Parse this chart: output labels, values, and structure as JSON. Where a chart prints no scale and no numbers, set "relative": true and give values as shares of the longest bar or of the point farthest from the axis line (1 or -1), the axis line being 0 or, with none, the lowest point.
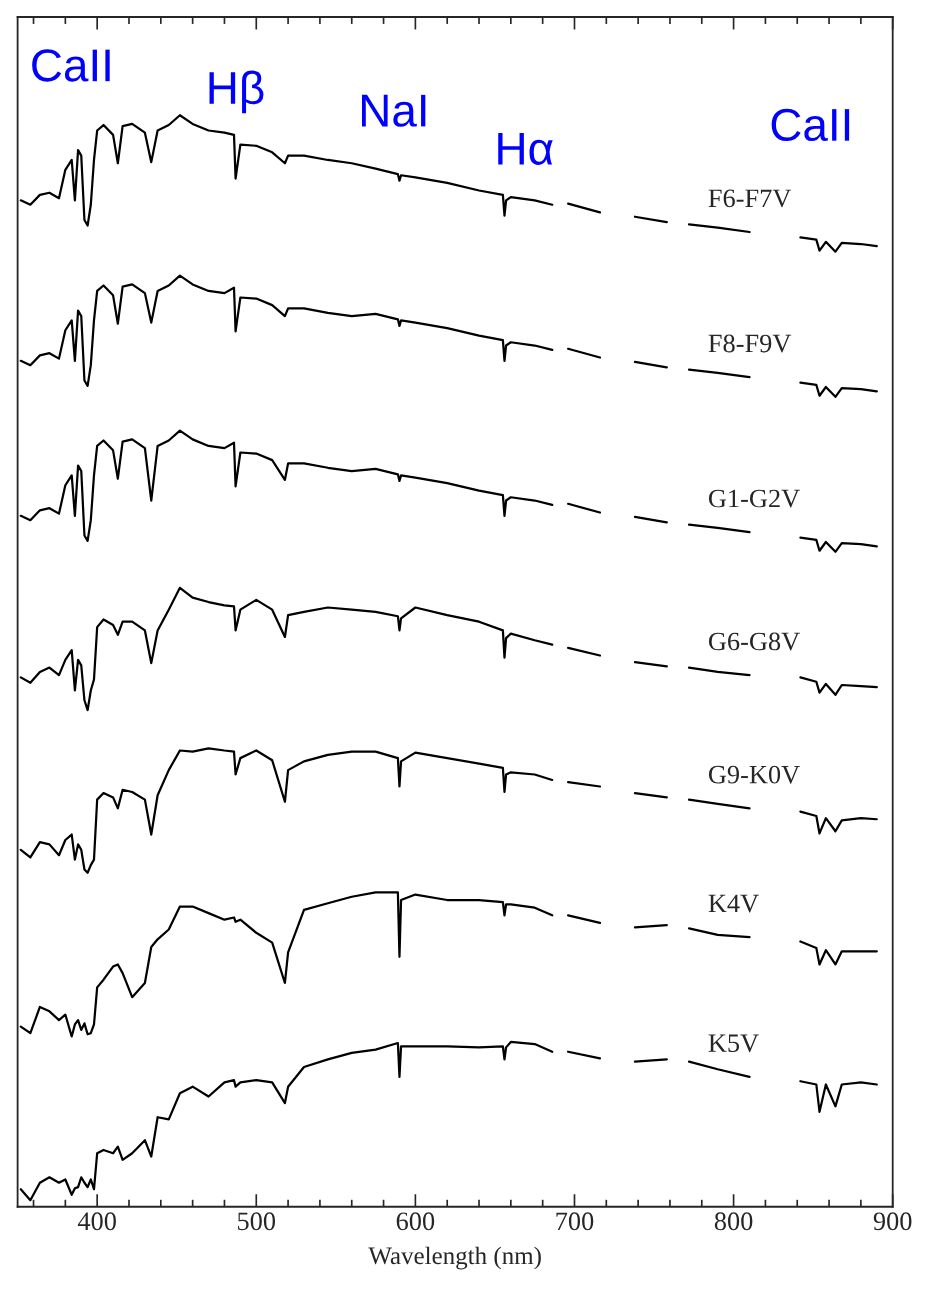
{
  "chart_data": {
    "type": "line",
    "xlabel": "Wavelength (nm)",
    "relative": true,
    "tick_labels": "x",
    "xlim": [
      350,
      900
    ],
    "xticks": [
      {
        "value": 360,
        "label": null
      },
      {
        "value": 380,
        "label": null
      },
      400,
      {
        "value": 420,
        "label": null
      },
      {
        "value": 440,
        "label": null
      },
      {
        "value": 460,
        "label": null
      },
      {
        "value": 480,
        "label": null
      },
      500,
      {
        "value": 520,
        "label": null
      },
      {
        "value": 540,
        "label": null
      },
      {
        "value": 560,
        "label": null
      },
      {
        "value": 580,
        "label": null
      },
      600,
      {
        "value": 620,
        "label": null
      },
      {
        "value": 640,
        "label": null
      },
      {
        "value": 660,
        "label": null
      },
      {
        "value": 680,
        "label": null
      },
      700,
      {
        "value": 720,
        "label": null
      },
      {
        "value": 740,
        "label": null
      },
      {
        "value": 760,
        "label": null
      },
      {
        "value": 780,
        "label": null
      },
      800,
      {
        "value": 820,
        "label": null
      },
      {
        "value": 840,
        "label": null
      },
      {
        "value": 860,
        "label": null
      },
      {
        "value": 880,
        "label": null
      },
      900
    ],
    "annotations": [
      "CaII",
      "Hβ",
      "NaI",
      "Hα",
      "CaII"
    ],
    "x": [
      352,
      358,
      364,
      370,
      376,
      380,
      384,
      386,
      388,
      390,
      392,
      394,
      396,
      398,
      400,
      404,
      410,
      413,
      416,
      422,
      430,
      434,
      438,
      445,
      452,
      460,
      470,
      480,
      486,
      487,
      490,
      500,
      510,
      518,
      520,
      530,
      545,
      560,
      575,
      589,
      590,
      591,
      600,
      620,
      640,
      655,
      656,
      657,
      660,
      675,
      686,
      690,
      696,
      716,
      725,
      738,
      758,
      765,
      772,
      790,
      810,
      825,
      842,
      852,
      854,
      858,
      864,
      868,
      880,
      890
    ],
    "series": [
      {
        "name": "F6-F7V",
        "color": "#000000",
        "values": [
          0.922,
          0.918,
          0.927,
          0.929,
          0.924,
          0.95,
          0.959,
          0.922,
          0.968,
          0.963,
          0.904,
          0.899,
          0.918,
          0.959,
          0.986,
          0.991,
          0.982,
          0.956,
          0.99,
          0.992,
          0.984,
          0.957,
          0.986,
          0.991,
          1.0,
          0.992,
          0.986,
          0.984,
          0.982,
          0.942,
          0.973,
          0.972,
          0.966,
          0.956,
          0.963,
          0.963,
          0.959,
          0.956,
          0.951,
          0.946,
          0.94,
          0.945,
          0.943,
          0.938,
          0.931,
          0.927,
          0.908,
          0.922,
          0.925,
          0.922,
          0.918,
          null,
          0.919,
          0.911,
          null,
          0.907,
          0.902,
          null,
          0.9,
          0.897,
          0.893,
          null,
          0.888,
          0.886,
          0.876,
          0.884,
          0.875,
          0.883,
          0.882,
          0.88
        ]
      },
      {
        "name": "F8-F9V",
        "color": "#000000",
        "values": [
          0.775,
          0.771,
          0.78,
          0.782,
          0.777,
          0.803,
          0.812,
          0.775,
          0.821,
          0.816,
          0.757,
          0.752,
          0.771,
          0.812,
          0.839,
          0.844,
          0.835,
          0.809,
          0.843,
          0.845,
          0.837,
          0.81,
          0.839,
          0.844,
          0.853,
          0.845,
          0.839,
          0.837,
          0.842,
          0.802,
          0.833,
          0.832,
          0.826,
          0.816,
          0.823,
          0.823,
          0.819,
          0.816,
          0.818,
          0.813,
          0.807,
          0.812,
          0.81,
          0.805,
          0.798,
          0.794,
          0.775,
          0.789,
          0.792,
          0.789,
          0.785,
          null,
          0.786,
          0.778,
          null,
          0.774,
          0.769,
          null,
          0.767,
          0.764,
          0.76,
          null,
          0.755,
          0.753,
          0.743,
          0.751,
          0.742,
          0.75,
          0.749,
          0.747
        ]
      },
      {
        "name": "G1-G2V",
        "color": "#000000",
        "values": [
          0.633,
          0.629,
          0.638,
          0.64,
          0.635,
          0.661,
          0.67,
          0.633,
          0.679,
          0.674,
          0.615,
          0.61,
          0.629,
          0.67,
          0.697,
          0.702,
          0.693,
          0.667,
          0.701,
          0.703,
          0.695,
          0.647,
          0.697,
          0.702,
          0.711,
          0.703,
          0.697,
          0.695,
          0.7,
          0.66,
          0.691,
          0.69,
          0.684,
          0.666,
          0.681,
          0.681,
          0.677,
          0.674,
          0.676,
          0.671,
          0.665,
          0.67,
          0.668,
          0.663,
          0.656,
          0.652,
          0.633,
          0.647,
          0.65,
          0.647,
          0.643,
          null,
          0.644,
          0.636,
          null,
          0.632,
          0.627,
          null,
          0.625,
          0.622,
          0.618,
          null,
          0.613,
          0.611,
          0.601,
          0.609,
          0.6,
          0.608,
          0.607,
          0.605
        ]
      },
      {
        "name": "G6-G8V",
        "color": "#000000",
        "values": [
          0.485,
          0.48,
          0.49,
          0.494,
          0.487,
          0.501,
          0.51,
          0.473,
          0.501,
          0.496,
          0.464,
          0.455,
          0.473,
          0.483,
          0.531,
          0.538,
          0.533,
          0.524,
          0.536,
          0.536,
          0.528,
          0.498,
          0.528,
          0.547,
          0.567,
          0.558,
          0.554,
          0.551,
          0.55,
          0.528,
          0.547,
          0.556,
          0.547,
          0.522,
          0.542,
          0.545,
          0.549,
          0.547,
          0.545,
          0.541,
          0.528,
          0.539,
          0.549,
          0.542,
          0.536,
          0.528,
          0.503,
          0.521,
          0.525,
          0.519,
          0.515,
          null,
          0.512,
          0.505,
          null,
          0.499,
          0.495,
          null,
          0.494,
          0.49,
          0.487,
          null,
          0.485,
          0.481,
          0.471,
          0.479,
          0.469,
          0.478,
          0.477,
          0.476
        ]
      },
      {
        "name": "G9-K0V",
        "color": "#000000",
        "values": [
          0.327,
          0.32,
          0.334,
          0.332,
          0.322,
          0.336,
          0.341,
          0.318,
          0.332,
          0.327,
          0.309,
          0.306,
          0.313,
          0.318,
          0.373,
          0.379,
          0.375,
          0.365,
          0.382,
          0.38,
          0.373,
          0.341,
          0.377,
          0.4,
          0.418,
          0.417,
          0.42,
          0.418,
          0.417,
          0.396,
          0.411,
          0.418,
          0.409,
          0.371,
          0.4,
          0.408,
          0.414,
          0.417,
          0.417,
          0.411,
          0.385,
          0.408,
          0.416,
          0.411,
          0.406,
          0.402,
          0.38,
          0.396,
          0.398,
          0.396,
          0.391,
          null,
          0.389,
          0.385,
          null,
          0.379,
          0.375,
          null,
          0.373,
          0.369,
          0.365,
          null,
          0.362,
          0.358,
          0.342,
          0.356,
          0.344,
          0.354,
          0.356,
          0.355
        ]
      },
      {
        "name": "K4V",
        "color": "#000000",
        "values": [
          0.165,
          0.159,
          0.183,
          0.179,
          0.171,
          0.176,
          0.156,
          0.167,
          0.171,
          0.162,
          0.168,
          0.158,
          0.159,
          0.167,
          0.201,
          0.208,
          0.22,
          0.222,
          0.214,
          0.192,
          0.205,
          0.238,
          0.245,
          0.254,
          0.275,
          0.275,
          0.269,
          0.263,
          0.265,
          0.261,
          0.263,
          0.251,
          0.242,
          0.205,
          0.233,
          0.272,
          0.278,
          0.284,
          0.288,
          0.288,
          0.229,
          0.281,
          0.286,
          0.281,
          0.281,
          0.279,
          0.267,
          0.277,
          0.277,
          0.274,
          0.267,
          null,
          0.267,
          0.26,
          null,
          0.256,
          0.258,
          null,
          0.255,
          0.249,
          0.247,
          null,
          0.243,
          0.237,
          0.222,
          0.235,
          0.222,
          0.234,
          0.234,
          0.234
        ]
      },
      {
        "name": "K5V",
        "color": "#000000",
        "values": [
          0.016,
          0.006,
          0.022,
          0.027,
          0.022,
          0.025,
          0.011,
          0.017,
          0.018,
          0.027,
          0.022,
          0.018,
          0.025,
          0.016,
          0.049,
          0.052,
          0.049,
          0.055,
          0.043,
          0.049,
          0.061,
          0.046,
          0.082,
          0.08,
          0.104,
          0.11,
          0.101,
          0.114,
          0.116,
          0.11,
          0.114,
          0.116,
          0.114,
          0.095,
          0.11,
          0.128,
          0.135,
          0.141,
          0.144,
          0.15,
          0.119,
          0.147,
          0.147,
          0.147,
          0.146,
          0.147,
          0.135,
          0.146,
          0.151,
          0.149,
          0.142,
          null,
          0.142,
          0.136,
          null,
          0.133,
          0.135,
          null,
          0.133,
          0.126,
          0.119,
          null,
          0.115,
          0.112,
          0.087,
          0.112,
          0.092,
          0.112,
          0.114,
          0.112
        ]
      }
    ]
  }
}
